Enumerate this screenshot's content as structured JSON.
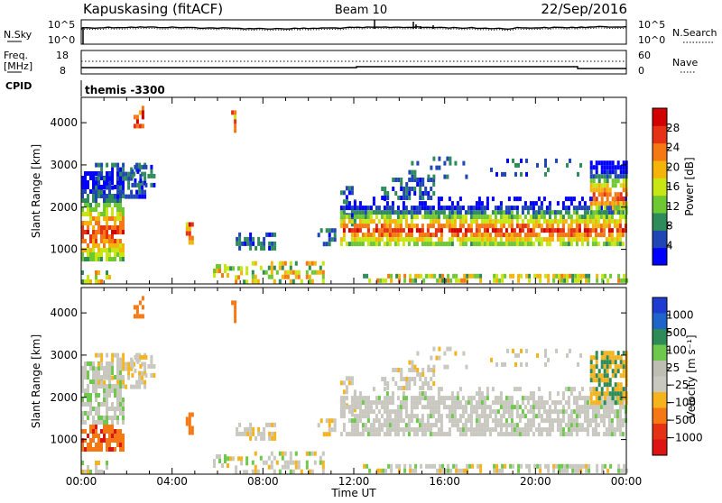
{
  "header": {
    "station": "Kapuskasing (fitACF)",
    "beam": "Beam 10",
    "date": "22/Sep/2016"
  },
  "top_panels": {
    "nsky_label": "N.Sky",
    "nsearch_label": "N.Search",
    "nsky_ticks": [
      "10^5",
      "10^0"
    ],
    "nsearch_ticks": [
      "10^5",
      "10^0"
    ],
    "freq_label": "Freq.",
    "freq_unit": "[MHz]",
    "freq_ticks": [
      "18",
      "8"
    ],
    "nave_label": "Nave",
    "nave_ticks": [
      "60",
      "0"
    ],
    "cpid_label": "CPID",
    "cpid_value": "themis -3300"
  },
  "colors": {
    "power_scale": [
      "#0000ff",
      "#1f46b4",
      "#2f8c5a",
      "#6ec832",
      "#c8e614",
      "#f5b40a",
      "#f57814",
      "#e63214",
      "#d20000"
    ],
    "velocity_scale": [
      "#1f3cd2",
      "#1f64c8",
      "#2e8b57",
      "#6dc84b",
      "#bebeb4",
      "#c8c8c0",
      "#f5b41e",
      "#f57814",
      "#e63214",
      "#dc1414"
    ]
  },
  "chart_data": [
    {
      "type": "heatmap",
      "name": "Power",
      "x_ticks": [
        "00:00",
        "04:00",
        "08:00",
        "12:00",
        "16:00",
        "20:00",
        "00:00"
      ],
      "x_range_hours": [
        0,
        24
      ],
      "xlabel": "Time UT",
      "ylabel": "Slant Range [km]",
      "y_ticks": [
        "1000",
        "2000",
        "3000",
        "4000"
      ],
      "y_range_km": [
        180,
        4600
      ],
      "colorbar_label": "Power [dB]",
      "colorbar_ticks": [
        "4",
        "8",
        "12",
        "16",
        "20",
        "24",
        "28"
      ],
      "colorbar_range": [
        0,
        32
      ]
    },
    {
      "type": "heatmap",
      "name": "Velocity",
      "x_ticks": [
        "00:00",
        "04:00",
        "08:00",
        "12:00",
        "16:00",
        "20:00",
        "00:00"
      ],
      "x_range_hours": [
        0,
        24
      ],
      "xlabel": "Time UT",
      "ylabel": "Slant Range [km]",
      "y_ticks": [
        "1000",
        "2000",
        "3000",
        "4000"
      ],
      "y_range_km": [
        180,
        4600
      ],
      "colorbar_label": "Velocity [m s⁻¹]",
      "colorbar_ticks": [
        "1000",
        "500",
        "100",
        "25",
        "−25",
        "−100",
        "−500",
        "−1000"
      ]
    }
  ],
  "footer": {
    "xlabel": "Time UT"
  }
}
